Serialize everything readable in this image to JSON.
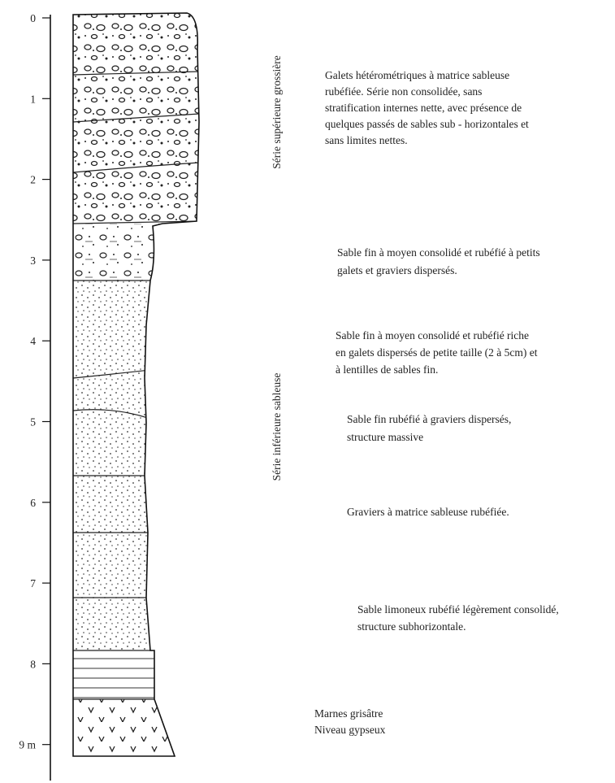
{
  "axis": {
    "ticks": [
      "0",
      "1",
      "2",
      "3",
      "4",
      "5",
      "6",
      "7",
      "8",
      "9 m"
    ]
  },
  "series_labels": [
    "Série supérieure grossière",
    "Série inférieure sableuse"
  ],
  "descriptions": [
    {
      "lines": [
        "Galets hétérométriques à matrice sableuse",
        "rubéfiée. Série non consolidée, sans",
        "stratification internes nette, avec présence de",
        "quelques passés de sables sub - horizontales et",
        "sans limites nettes."
      ]
    },
    {
      "lines": [
        "Sable fin à moyen consolidé et rubéfié à petits",
        "galets et graviers dispersés."
      ]
    },
    {
      "lines": [
        "Sable fin à moyen consolidé et rubéfié riche",
        "en galets dispersés de petite taille (2 à 5cm) et",
        "à lentilles de sables fin."
      ]
    },
    {
      "lines": [
        "Sable fin rubéfié à graviers dispersés,",
        "structure massive"
      ]
    },
    {
      "lines": [
        "Graviers à matrice sableuse rubéfiée."
      ]
    },
    {
      "lines": [
        "Sable limoneux rubéfié légèrement consolidé,",
        "structure subhorizontale."
      ]
    },
    {
      "lines": [
        "Marnes grisâtre",
        "Niveau gypseux"
      ]
    }
  ]
}
